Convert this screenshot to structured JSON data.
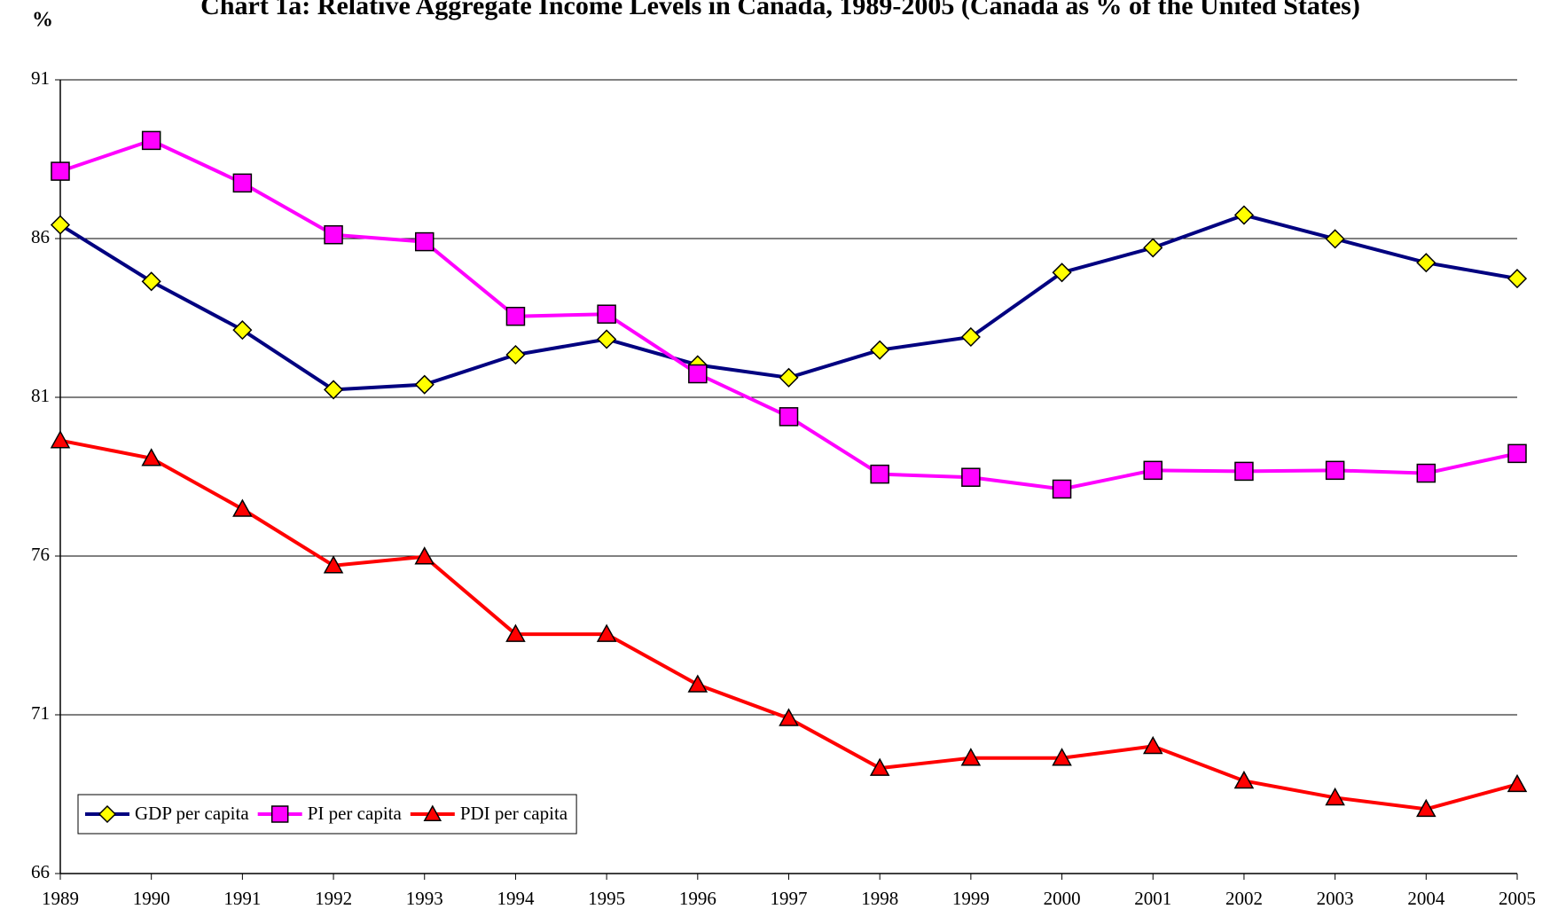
{
  "chart_data": {
    "type": "line",
    "title": "Chart 1a: Relative Aggregate Income Levels in Canada, 1989-2005 (Canada as % of the United States)",
    "y_label": "%",
    "categories": [
      "1989",
      "1990",
      "1991",
      "1992",
      "1993",
      "1994",
      "1995",
      "1996",
      "1997",
      "1998",
      "1999",
      "2000",
      "2001",
      "2002",
      "2003",
      "2004",
      "2005"
    ],
    "series": [
      {
        "name": "GDP per capita",
        "color": "#000080",
        "marker": "diamond",
        "marker_color": "#ffff00",
        "values": [
          86.43,
          84.65,
          83.12,
          81.24,
          81.4,
          82.34,
          82.83,
          82.02,
          81.62,
          82.49,
          82.9,
          84.93,
          85.71,
          86.74,
          85.99,
          85.24,
          84.74
        ]
      },
      {
        "name": "PI per capita",
        "color": "#ff00ff",
        "marker": "square",
        "marker_color": "#ff00ff",
        "values": [
          88.12,
          89.09,
          87.75,
          86.12,
          85.9,
          83.55,
          83.62,
          81.74,
          80.39,
          78.58,
          78.48,
          78.11,
          78.7,
          78.67,
          78.7,
          78.61,
          79.23
        ]
      },
      {
        "name": "PDI per capita",
        "color": "#ff0000",
        "marker": "triangle",
        "marker_color": "#ff0000",
        "values": [
          79.64,
          79.08,
          77.48,
          75.7,
          75.98,
          73.54,
          73.54,
          71.95,
          70.89,
          69.32,
          69.64,
          69.64,
          70.01,
          68.92,
          68.39,
          68.03,
          68.81
        ]
      }
    ],
    "ylim": [
      66,
      91
    ],
    "yticks": [
      66,
      71,
      76,
      81,
      86,
      91
    ],
    "grid": true,
    "legend": "lower left"
  }
}
